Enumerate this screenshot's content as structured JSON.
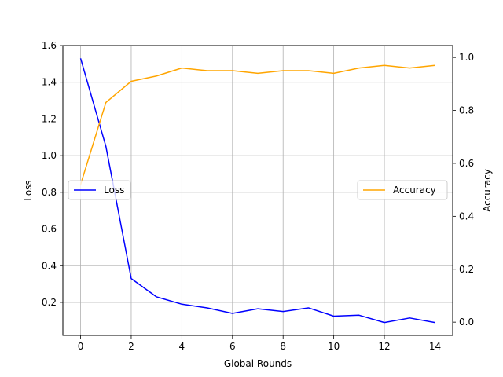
{
  "chart_data": {
    "type": "line",
    "xlabel": "Global Rounds",
    "ylabel_left": "Loss",
    "ylabel_right": "Accuracy",
    "x": [
      0,
      1,
      2,
      3,
      4,
      5,
      6,
      7,
      8,
      9,
      10,
      11,
      12,
      13,
      14
    ],
    "xlim": [
      -0.7,
      14.7
    ],
    "x_ticks": [
      0,
      2,
      4,
      6,
      8,
      10,
      12,
      14
    ],
    "ylim_left": [
      0.02,
      1.6
    ],
    "ylim_right": [
      -0.05,
      1.045
    ],
    "y_ticks_left": [
      0.2,
      0.4,
      0.6,
      0.8,
      1.0,
      1.2,
      1.4,
      1.6
    ],
    "y_ticks_right": [
      0.0,
      0.2,
      0.4,
      0.6,
      0.8,
      1.0
    ],
    "grid": true,
    "series": [
      {
        "name": "Loss",
        "axis": "left",
        "color": "#0000ff",
        "values": [
          1.53,
          1.05,
          0.33,
          0.23,
          0.19,
          0.17,
          0.14,
          0.165,
          0.15,
          0.17,
          0.125,
          0.13,
          0.09,
          0.115,
          0.09
        ],
        "legend_position": "center-left"
      },
      {
        "name": "Accuracy",
        "axis": "right",
        "color": "#ffa500",
        "values": [
          0.52,
          0.83,
          0.91,
          0.93,
          0.96,
          0.95,
          0.95,
          0.94,
          0.95,
          0.95,
          0.94,
          0.96,
          0.97,
          0.96,
          0.97
        ],
        "legend_position": "center-right"
      }
    ]
  }
}
